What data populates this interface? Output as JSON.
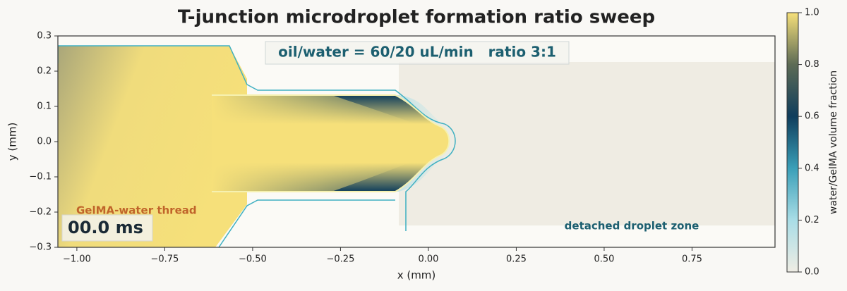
{
  "chart_data": {
    "type": "heatmap",
    "title": "T-junction microdroplet formation ratio sweep",
    "xlabel": "x (mm)",
    "ylabel": "y (mm)",
    "xlim": [
      -1.054,
      0.986
    ],
    "xticks": [
      {
        "value": -1,
        "label": "−1.00"
      },
      {
        "value": -0.75,
        "label": "−0.75"
      },
      {
        "value": -0.5,
        "label": "−0.50"
      },
      {
        "value": -0.25,
        "label": "−0.25"
      },
      {
        "value": 0,
        "label": "0.00"
      },
      {
        "value": 0.25,
        "label": "0.25"
      },
      {
        "value": 0.5,
        "label": "0.50"
      },
      {
        "value": 0.75,
        "label": "0.75"
      }
    ],
    "ylim": [
      -0.3,
      0.3
    ],
    "yticks": [
      {
        "value": -0.3,
        "label": "−0.3"
      },
      {
        "value": -0.2,
        "label": "−0.2"
      },
      {
        "value": -0.1,
        "label": "−0.1"
      },
      {
        "value": 0,
        "label": "0.0"
      },
      0.1,
      0.2,
      0.3
    ],
    "colorbar": {
      "label": "water/GelMA volume fraction",
      "lim": [
        0,
        1
      ],
      "ticks": [
        {
          "value": 0,
          "label": "0.0"
        },
        0.2,
        0.4,
        0.6,
        0.8,
        {
          "value": 1,
          "label": "1.0"
        }
      ],
      "colors": [
        "#efede4",
        "#a9dde6",
        "#3a9fb8",
        "#0f3d5c",
        "#5d6b55",
        "#f6e07a"
      ]
    },
    "annotations": [
      "oil/water = 60/20 uL/min   ratio 3:1",
      "GelMA-water thread",
      "detached droplet zone",
      "00.0 ms"
    ]
  }
}
